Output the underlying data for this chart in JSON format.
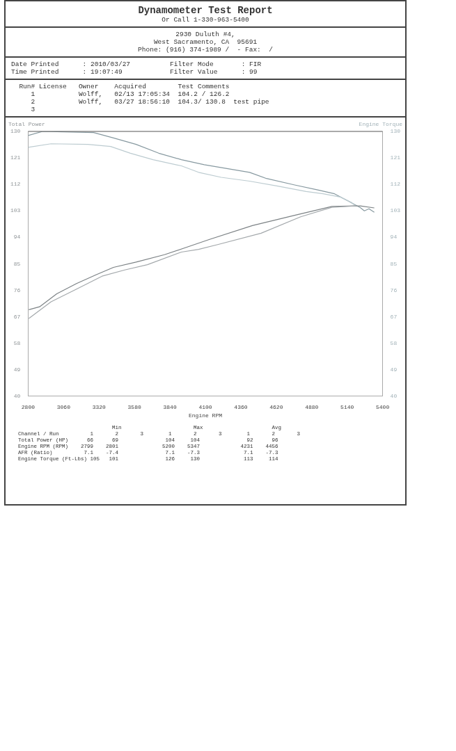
{
  "chart_data": {
    "type": "line",
    "title": "Dynamometer Test Report",
    "ylabel": "Total Power",
    "y2label": "Engine Torque",
    "xlabel": "Engine RPM",
    "annotations": [
      "Or Call 1-330-963-5400",
      "2930 Duluth #4,",
      "West Sacramento, CA  95691",
      "Phone: (916) 374-1989 /  - Fax:  /",
      "Date Printed      : 2010/03/27          Filter Mode       : FIR",
      "Time Printed      : 19:07:49            Filter Value      : 99",
      "  Run# License   Owner    Acquired        Test Comments",
      "     1           Wolff,   02/13 17:05:34  104.2 / 126.2",
      "     2           Wolff,   03/27 18:56:10  104.3/ 130.8  test pipe",
      "     3",
      "                              Min                       Max                      Avg",
      "Channel / Run          1       2       3        1       2       3        1       2       3",
      "Total Power (HP)      66      69               104     104               92      96",
      "Engine RPM (RPM)    2799    2801              5200    5347             4231    4456",
      "AFR (Ratio)          7.1    -7.4               7.1    -7.3              7.1    -7.3",
      "Engine Torque (Ft-Lbs) 105   101               126     130              113     114"
    ],
    "xlim": [
      2800,
      5400
    ],
    "xticks": [
      2800,
      3060,
      3320,
      3580,
      3840,
      4100,
      4360,
      4620,
      4880,
      5140,
      5400
    ],
    "ylim": [
      40,
      130
    ],
    "yticks": [
      40,
      49,
      58,
      67,
      76,
      85,
      94,
      103,
      112,
      121,
      130
    ],
    "y2lim": [
      40,
      130
    ],
    "y2ticks": [
      40,
      49,
      58,
      67,
      76,
      85,
      94,
      103,
      112,
      121,
      130
    ],
    "grid": false,
    "legend": false,
    "marker": "none",
    "line_style": "solid",
    "series": [
      {
        "type": "line",
        "color": "#a3a8ab",
        "x": [
          2805,
          2968,
          3155,
          3342,
          3508,
          3675,
          3924,
          4050,
          4195,
          4509,
          4799,
          5028,
          5200
        ],
        "values": [
          66.4,
          72.1,
          76.4,
          80.8,
          82.9,
          84.7,
          89.0,
          89.9,
          91.6,
          95.4,
          101.0,
          104.2,
          104.7
        ]
      },
      {
        "type": "line",
        "color": "#7c8285",
        "x": [
          2805,
          2884,
          3010,
          3155,
          3300,
          3426,
          3592,
          3800,
          3967,
          4131,
          4445,
          4755,
          5028,
          5236,
          5339
        ],
        "values": [
          69.4,
          70.4,
          74.8,
          78.3,
          81.3,
          83.8,
          85.6,
          88.1,
          90.7,
          93.3,
          98.0,
          101.5,
          104.5,
          104.7,
          104.0
        ]
      },
      {
        "type": "line",
        "axis": "y2",
        "color": "#bccbd0",
        "x": [
          2800,
          2968,
          3238,
          3405,
          3550,
          3716,
          3924,
          4050,
          4216,
          4424,
          4631,
          4839,
          4963,
          5090,
          5173,
          5200
        ],
        "values": [
          124.6,
          125.8,
          125.6,
          124.9,
          122.6,
          120.4,
          118.3,
          116.1,
          114.4,
          113.1,
          111.4,
          109.6,
          108.8,
          107.7,
          105.8,
          104.7
        ]
      },
      {
        "type": "line",
        "axis": "y2",
        "color": "#8799a0",
        "x": [
          2800,
          2906,
          3280,
          3426,
          3592,
          3758,
          3924,
          4092,
          4258,
          4424,
          4548,
          4755,
          4924,
          5047,
          5154,
          5236,
          5266,
          5300,
          5339
        ],
        "values": [
          128.6,
          130,
          129.6,
          127.8,
          125.6,
          122.6,
          120.4,
          118.7,
          117.4,
          116.1,
          114.0,
          111.8,
          110.1,
          108.8,
          106.2,
          104.1,
          103.0,
          103.7,
          102.5
        ]
      }
    ]
  }
}
